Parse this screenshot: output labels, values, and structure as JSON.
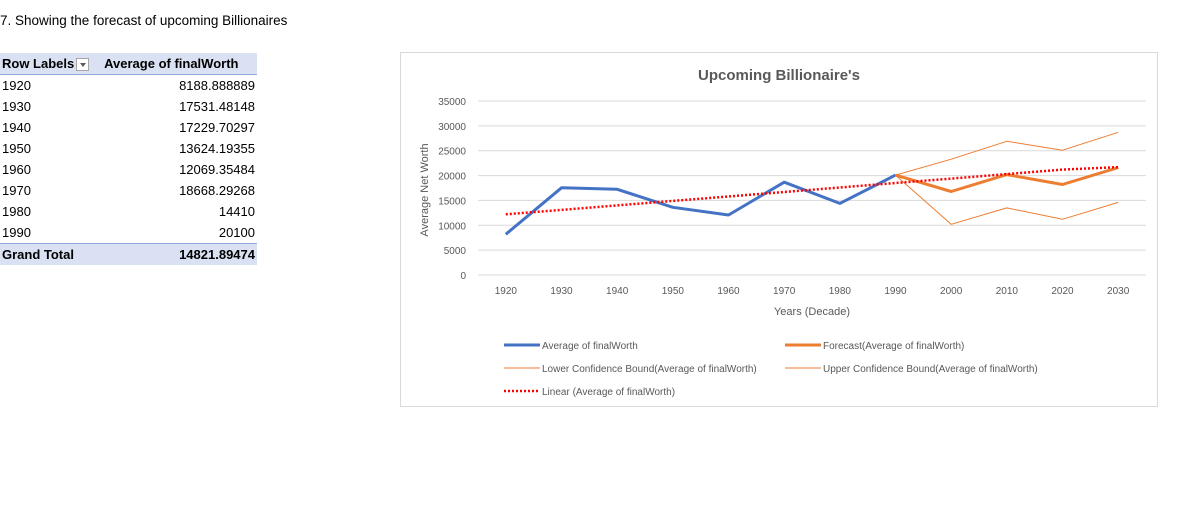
{
  "heading": "7. Showing the forecast of upcoming Billionaires",
  "pivot": {
    "col_row_labels": "Row Labels",
    "col_value": "Average of finalWorth",
    "rows": [
      {
        "label": "1920",
        "value": "8188.888889"
      },
      {
        "label": "1930",
        "value": "17531.48148"
      },
      {
        "label": "1940",
        "value": "17229.70297"
      },
      {
        "label": "1950",
        "value": "13624.19355"
      },
      {
        "label": "1960",
        "value": "12069.35484"
      },
      {
        "label": "1970",
        "value": "18668.29268"
      },
      {
        "label": "1980",
        "value": "14410"
      },
      {
        "label": "1990",
        "value": "20100"
      }
    ],
    "total_label": "Grand Total",
    "total_value": "14821.89474"
  },
  "chart_data": {
    "type": "line",
    "title": "Upcoming Billionaire's",
    "xlabel": "Years (Decade)",
    "ylabel": "Average Net Worth",
    "x": [
      1920,
      1930,
      1940,
      1950,
      1960,
      1970,
      1980,
      1990,
      2000,
      2010,
      2020,
      2030
    ],
    "ylim": [
      0,
      35000
    ],
    "yticks": [
      0,
      5000,
      10000,
      15000,
      20000,
      25000,
      30000,
      35000
    ],
    "grid": true,
    "legend_position": "bottom",
    "series": [
      {
        "name": "Average of finalWorth",
        "color": "#4472c4",
        "values": [
          8188.89,
          17531.48,
          17229.7,
          13624.19,
          12069.35,
          18668.29,
          14410,
          20100,
          null,
          null,
          null,
          null
        ]
      },
      {
        "name": "Forecast(Average of finalWorth)",
        "color": "#ed7d31",
        "values": [
          null,
          null,
          null,
          null,
          null,
          null,
          null,
          20100,
          16800,
          20200,
          18200,
          21600
        ]
      },
      {
        "name": "Lower Confidence Bound(Average of finalWorth)",
        "color": "#ed7d31",
        "values": [
          null,
          null,
          null,
          null,
          null,
          null,
          null,
          20100,
          10200,
          13500,
          11200,
          14600
        ]
      },
      {
        "name": "Upper Confidence Bound(Average of finalWorth)",
        "color": "#ed7d31",
        "values": [
          null,
          null,
          null,
          null,
          null,
          null,
          null,
          20100,
          23300,
          26900,
          25100,
          28700
        ]
      },
      {
        "name": "Linear (Average of finalWorth)",
        "color": "#ff0000",
        "values": [
          12200,
          13100,
          14000,
          14900,
          15800,
          16700,
          17600,
          18500,
          19400,
          20300,
          21200,
          21700
        ]
      }
    ]
  }
}
